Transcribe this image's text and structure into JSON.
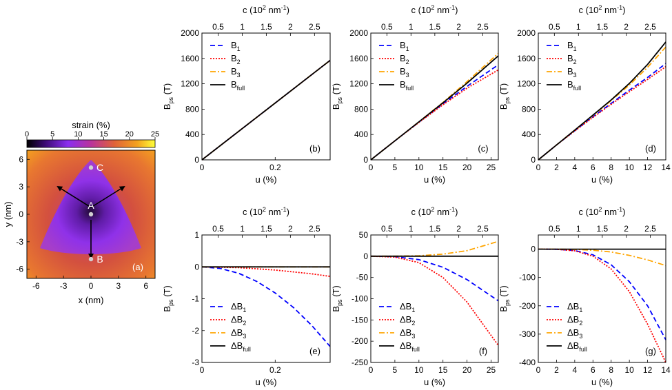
{
  "chart_data": [
    {
      "panel": "(a)",
      "type": "heatmap",
      "xlabel": "x (nm)",
      "ylabel": "y (nm)",
      "xticks": [
        -6,
        -3,
        0,
        3,
        6
      ],
      "yticks": [
        -6,
        -3,
        0,
        3,
        6
      ],
      "xlim": [
        -7,
        7
      ],
      "ylim": [
        -7,
        7
      ],
      "colorbar": {
        "title": "strain (%)",
        "ticks": [
          0,
          5,
          10,
          15,
          20,
          25
        ],
        "range": [
          0,
          25
        ],
        "colors": [
          "#000000",
          "#3b0a72",
          "#8a2ff0",
          "#b9339b",
          "#e0623a",
          "#f3a21f",
          "#ffff3a"
        ]
      },
      "points": [
        {
          "label": "C",
          "x": 0,
          "y": 5.1
        },
        {
          "label": "A",
          "x": 0,
          "y": 0
        },
        {
          "label": "B",
          "x": 0,
          "y": -4.9
        }
      ]
    },
    {
      "panel": "(b)",
      "type": "line",
      "xlabel": "u (%)",
      "ylabel": "B",
      "ylabel_sub": "ps",
      "ylabel_unit": " (T)",
      "top_axis_label": "c (10",
      "top_axis_sup": "2",
      "top_axis_rest": " nm",
      "top_axis_sup2": "-1",
      "top_axis_close": ")",
      "top_ticks": [
        "0.5",
        "1",
        "1.5",
        "2",
        "2.5"
      ],
      "xlim": [
        0,
        0.35
      ],
      "ylim": [
        0,
        2000
      ],
      "xticks": [
        0,
        0.2
      ],
      "xtick_labels": [
        "0",
        "0.2"
      ],
      "yticks": [
        0,
        400,
        800,
        1200,
        1600,
        2000
      ],
      "legend_position": "top-left",
      "series": [
        {
          "name": "B",
          "sub": "1",
          "style": "dashed",
          "color": "#0000ff",
          "x": [
            0,
            0.35
          ],
          "y": [
            0,
            1570
          ]
        },
        {
          "name": "B",
          "sub": "2",
          "style": "dotted",
          "color": "#ff0000",
          "x": [
            0,
            0.35
          ],
          "y": [
            0,
            1570
          ]
        },
        {
          "name": "B",
          "sub": "3",
          "style": "dashdot",
          "color": "#ffa500",
          "x": [
            0,
            0.35
          ],
          "y": [
            0,
            1570
          ]
        },
        {
          "name": "B",
          "sub": "full",
          "style": "solid",
          "color": "#000000",
          "x": [
            0,
            0.35
          ],
          "y": [
            0,
            1570
          ]
        }
      ]
    },
    {
      "panel": "(c)",
      "type": "line",
      "xlabel": "u (%)",
      "ylabel": "B",
      "ylabel_sub": "ps",
      "ylabel_unit": " (T)",
      "top_axis_label": "c (10",
      "top_axis_sup": "2",
      "top_axis_rest": " nm",
      "top_axis_sup2": "-1",
      "top_axis_close": ")",
      "top_ticks": [
        "0.5",
        "1",
        "1.5",
        "2",
        "2.5"
      ],
      "xlim": [
        0,
        26.5
      ],
      "ylim": [
        0,
        2000
      ],
      "xticks": [
        0,
        5,
        10,
        15,
        20,
        25
      ],
      "xtick_labels": [
        "0",
        "5",
        "10",
        "15",
        "20",
        "25"
      ],
      "yticks": [
        0,
        400,
        800,
        1200,
        1600,
        2000
      ],
      "legend_position": "top-left",
      "series": [
        {
          "name": "B",
          "sub": "1",
          "style": "dashed",
          "color": "#0000ff",
          "x": [
            0,
            5,
            10,
            15,
            20,
            26.5
          ],
          "y": [
            0,
            300,
            595,
            885,
            1160,
            1500
          ]
        },
        {
          "name": "B",
          "sub": "2",
          "style": "dotted",
          "color": "#ff0000",
          "x": [
            0,
            5,
            10,
            15,
            20,
            26.5
          ],
          "y": [
            0,
            300,
            590,
            870,
            1130,
            1420
          ]
        },
        {
          "name": "B",
          "sub": "3",
          "style": "dashdot",
          "color": "#ffa500",
          "x": [
            0,
            5,
            10,
            15,
            20,
            26.5
          ],
          "y": [
            0,
            300,
            600,
            905,
            1235,
            1680
          ]
        },
        {
          "name": "B",
          "sub": "full",
          "style": "solid",
          "color": "#000000",
          "x": [
            0,
            5,
            10,
            15,
            20,
            26.5
          ],
          "y": [
            0,
            300,
            600,
            900,
            1210,
            1640
          ]
        }
      ]
    },
    {
      "panel": "(d)",
      "type": "line",
      "xlabel": "u (%)",
      "ylabel": "B",
      "ylabel_sub": "ps",
      "ylabel_unit": " (T)",
      "top_axis_label": "c (10",
      "top_axis_sup": "2",
      "top_axis_rest": " nm",
      "top_axis_sup2": "-1",
      "top_axis_close": ")",
      "top_ticks": [
        "0.5",
        "1",
        "1.5",
        "2",
        "2.5"
      ],
      "xlim": [
        0,
        14
      ],
      "ylim": [
        0,
        2000
      ],
      "xticks": [
        0,
        2,
        4,
        6,
        8,
        10,
        12,
        14
      ],
      "xtick_labels": [
        "0",
        "2",
        "4",
        "6",
        "8",
        "10",
        "12",
        "14"
      ],
      "yticks": [
        0,
        400,
        800,
        1200,
        1600,
        2000
      ],
      "legend_position": "top-left",
      "series": [
        {
          "name": "B",
          "sub": "1",
          "style": "dashed",
          "color": "#0000ff",
          "x": [
            0,
            2,
            4,
            6,
            8,
            10,
            12,
            14
          ],
          "y": [
            0,
            235,
            460,
            680,
            890,
            1100,
            1300,
            1520
          ]
        },
        {
          "name": "B",
          "sub": "2",
          "style": "dotted",
          "color": "#ff0000",
          "x": [
            0,
            2,
            4,
            6,
            8,
            10,
            12,
            14
          ],
          "y": [
            0,
            235,
            455,
            670,
            875,
            1075,
            1270,
            1470
          ]
        },
        {
          "name": "B",
          "sub": "3",
          "style": "dashdot",
          "color": "#ffa500",
          "x": [
            0,
            2,
            4,
            6,
            8,
            10,
            12,
            14
          ],
          "y": [
            0,
            235,
            470,
            700,
            935,
            1180,
            1460,
            1780
          ]
        },
        {
          "name": "B",
          "sub": "full",
          "style": "solid",
          "color": "#000000",
          "x": [
            0,
            2,
            4,
            6,
            8,
            10,
            12,
            14
          ],
          "y": [
            0,
            235,
            470,
            705,
            945,
            1205,
            1505,
            1860
          ]
        }
      ]
    },
    {
      "panel": "(e)",
      "type": "line",
      "xlabel": "u (%)",
      "ylabel": "B",
      "ylabel_sub": "ps",
      "ylabel_unit": " (T)",
      "top_axis_label": "c (10",
      "top_axis_sup": "2",
      "top_axis_rest": " nm",
      "top_axis_sup2": "-1",
      "top_axis_close": ")",
      "top_ticks": [
        "0.5",
        "1",
        "1.5",
        "2",
        "2.5"
      ],
      "xlim": [
        0,
        0.35
      ],
      "ylim": [
        -3,
        1
      ],
      "xticks": [
        0,
        0.2
      ],
      "xtick_labels": [
        "0",
        "0.2"
      ],
      "yticks": [
        -3,
        -2,
        -1,
        0,
        1
      ],
      "legend_position": "bottom-left",
      "series": [
        {
          "name": "ΔB",
          "sub": "1",
          "style": "dashed",
          "color": "#0000ff",
          "x": [
            0,
            0.05,
            0.1,
            0.15,
            0.2,
            0.25,
            0.3,
            0.35
          ],
          "y": [
            0,
            -0.05,
            -0.2,
            -0.46,
            -0.82,
            -1.28,
            -1.84,
            -2.5
          ]
        },
        {
          "name": "ΔB",
          "sub": "2",
          "style": "dotted",
          "color": "#ff0000",
          "x": [
            0,
            0.1,
            0.2,
            0.3,
            0.35
          ],
          "y": [
            0,
            -0.025,
            -0.1,
            -0.22,
            -0.3
          ]
        },
        {
          "name": "ΔB",
          "sub": "3",
          "style": "dashdot",
          "color": "#ffa500",
          "x": [
            0,
            0.35
          ],
          "y": [
            0,
            0
          ]
        },
        {
          "name": "ΔB",
          "sub": "full",
          "style": "solid",
          "color": "#000000",
          "x": [
            0,
            0.35
          ],
          "y": [
            0,
            0
          ]
        }
      ]
    },
    {
      "panel": "(f)",
      "type": "line",
      "xlabel": "u (%)",
      "ylabel": "B",
      "ylabel_sub": "ps",
      "ylabel_unit": " (T)",
      "top_axis_label": "c (10",
      "top_axis_sup": "2",
      "top_axis_rest": " nm",
      "top_axis_sup2": "-1",
      "top_axis_close": ")",
      "top_ticks": [
        "0.5",
        "1",
        "1.5",
        "2",
        "2.5"
      ],
      "xlim": [
        0,
        26.5
      ],
      "ylim": [
        -250,
        50
      ],
      "xticks": [
        0,
        5,
        10,
        15,
        20,
        25
      ],
      "xtick_labels": [
        "0",
        "5",
        "10",
        "15",
        "20",
        "25"
      ],
      "yticks": [
        -250,
        -200,
        -150,
        -100,
        -50,
        0,
        50
      ],
      "legend_position": "bottom-left",
      "series": [
        {
          "name": "ΔB",
          "sub": "1",
          "style": "dashed",
          "color": "#0000ff",
          "x": [
            0,
            5,
            10,
            15,
            20,
            26.5
          ],
          "y": [
            0,
            -1,
            -8,
            -26,
            -55,
            -105
          ]
        },
        {
          "name": "ΔB",
          "sub": "2",
          "style": "dotted",
          "color": "#ff0000",
          "x": [
            0,
            5,
            10,
            15,
            20,
            26.5
          ],
          "y": [
            0,
            -2,
            -15,
            -50,
            -108,
            -210
          ]
        },
        {
          "name": "ΔB",
          "sub": "3",
          "style": "dashdot",
          "color": "#ffa500",
          "x": [
            0,
            5,
            10,
            15,
            20,
            26.5
          ],
          "y": [
            0,
            0,
            1,
            5,
            13,
            35
          ]
        },
        {
          "name": "ΔB",
          "sub": "full",
          "style": "solid",
          "color": "#000000",
          "x": [
            0,
            26.5
          ],
          "y": [
            0,
            0
          ]
        }
      ]
    },
    {
      "panel": "(g)",
      "type": "line",
      "xlabel": "u (%)",
      "ylabel": "B",
      "ylabel_sub": "ps",
      "ylabel_unit": " (T)",
      "top_axis_label": "c (10",
      "top_axis_sup": "2",
      "top_axis_rest": " nm",
      "top_axis_sup2": "-1",
      "top_axis_close": ")",
      "top_ticks": [
        "0.5",
        "1",
        "1.5",
        "2",
        "2.5"
      ],
      "xlim": [
        0,
        14
      ],
      "ylim": [
        -400,
        50
      ],
      "xticks": [
        0,
        2,
        4,
        6,
        8,
        10,
        12,
        14
      ],
      "xtick_labels": [
        "0",
        "2",
        "4",
        "6",
        "8",
        "10",
        "12",
        "14"
      ],
      "yticks": [
        -400,
        -300,
        -200,
        -100,
        0
      ],
      "legend_position": "bottom-left",
      "series": [
        {
          "name": "ΔB",
          "sub": "1",
          "style": "dashed",
          "color": "#0000ff",
          "x": [
            0,
            2,
            4,
            6,
            8,
            10,
            12,
            14
          ],
          "y": [
            0,
            -0.5,
            -5,
            -20,
            -55,
            -115,
            -200,
            -320
          ]
        },
        {
          "name": "ΔB",
          "sub": "2",
          "style": "dotted",
          "color": "#ff0000",
          "x": [
            0,
            2,
            4,
            6,
            8,
            10,
            12,
            14
          ],
          "y": [
            0,
            -0.6,
            -6,
            -25,
            -70,
            -150,
            -265,
            -400
          ]
        },
        {
          "name": "ΔB",
          "sub": "3",
          "style": "dashdot",
          "color": "#ffa500",
          "x": [
            0,
            2,
            4,
            6,
            8,
            10,
            12,
            14
          ],
          "y": [
            0,
            0,
            -1,
            -4,
            -10,
            -22,
            -38,
            -58
          ]
        },
        {
          "name": "ΔB",
          "sub": "full",
          "style": "solid",
          "color": "#000000",
          "x": [
            0,
            14
          ],
          "y": [
            0,
            0
          ]
        }
      ]
    }
  ]
}
